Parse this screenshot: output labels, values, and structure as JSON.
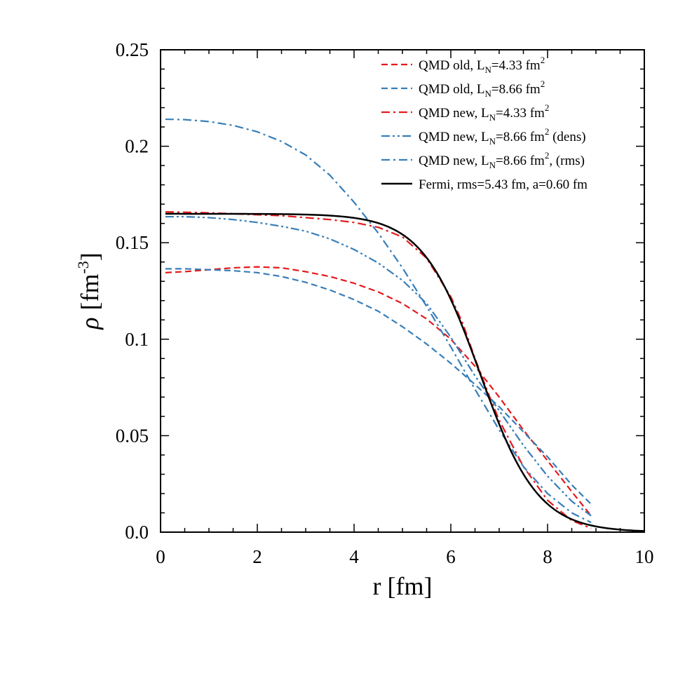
{
  "chart_data": {
    "type": "line",
    "xlabel": "r [fm]",
    "ylabel": "ρ [fm-3]",
    "ylabel_parts": {
      "symbol": "ρ",
      "unit_open": "[fm",
      "unit_exp": "-3",
      "unit_close": "]"
    },
    "xlim": [
      0,
      10
    ],
    "ylim": [
      0,
      0.25
    ],
    "xticks": [
      0,
      2,
      4,
      6,
      8,
      10
    ],
    "xtick_labels": [
      "0",
      "2",
      "4",
      "6",
      "8",
      "10"
    ],
    "yticks": [
      0,
      0.05,
      0.1,
      0.15,
      0.2,
      0.25
    ],
    "ytick_labels": [
      "0.0",
      "0.05",
      "0.1",
      "0.15",
      "0.2",
      "0.25"
    ],
    "grid": false,
    "legend_position": "top-right",
    "series": [
      {
        "name": "QMD old, LN=4.33 fm2",
        "legend": {
          "a": "QMD old, L",
          "sub": "N",
          "b": "=4.33 fm",
          "sup": "2",
          "c": ""
        },
        "color": "#e41a1c",
        "dash": "dash",
        "x": [
          0.1,
          0.5,
          1,
          1.5,
          2,
          2.5,
          3,
          3.5,
          4,
          4.5,
          5,
          5.5,
          6,
          6.5,
          7,
          7.5,
          8,
          8.5,
          8.9
        ],
        "y": [
          0.1345,
          0.135,
          0.136,
          0.137,
          0.1375,
          0.137,
          0.135,
          0.1325,
          0.129,
          0.1245,
          0.1185,
          0.1105,
          0.1,
          0.086,
          0.07,
          0.053,
          0.037,
          0.021,
          0.0085
        ]
      },
      {
        "name": "QMD old, LN=8.66 fm2",
        "legend": {
          "a": "QMD old, L",
          "sub": "N",
          "b": "=8.66 fm",
          "sup": "2",
          "c": ""
        },
        "color": "#377eb8",
        "dash": "dash",
        "x": [
          0.1,
          0.5,
          1,
          1.5,
          2,
          2.5,
          3,
          3.5,
          4,
          4.5,
          5,
          5.5,
          6,
          6.5,
          7,
          7.5,
          8,
          8.5,
          8.9
        ],
        "y": [
          0.1365,
          0.1365,
          0.136,
          0.1355,
          0.1345,
          0.1325,
          0.1295,
          0.1255,
          0.1205,
          0.1145,
          0.1065,
          0.0975,
          0.0875,
          0.0765,
          0.065,
          0.052,
          0.039,
          0.0245,
          0.0145
        ]
      },
      {
        "name": "QMD new, LN=4.33 fm2",
        "legend": {
          "a": "QMD new, L",
          "sub": "N",
          "b": "=4.33 fm",
          "sup": "2",
          "c": ""
        },
        "color": "#e41a1c",
        "dash": "dashdot",
        "x": [
          0.1,
          0.5,
          1,
          1.5,
          2,
          2.5,
          3,
          3.5,
          4,
          4.5,
          5,
          5.5,
          6,
          6.25,
          6.5,
          6.75,
          7,
          7.5,
          8,
          8.5,
          8.9
        ],
        "y": [
          0.166,
          0.1658,
          0.1655,
          0.165,
          0.1645,
          0.164,
          0.163,
          0.162,
          0.1605,
          0.158,
          0.153,
          0.142,
          0.122,
          0.108,
          0.09,
          0.0735,
          0.058,
          0.034,
          0.0165,
          0.006,
          0.002
        ]
      },
      {
        "name": "QMD new, LN=8.66 fm2 (dens)",
        "legend": {
          "a": "QMD new, L",
          "sub": "N",
          "b": "=8.66 fm",
          "sup": "2",
          "c": " (dens)"
        },
        "color": "#377eb8",
        "dash": "dashdotdot",
        "x": [
          0.1,
          0.5,
          1,
          1.5,
          2,
          2.5,
          3,
          3.5,
          4,
          4.5,
          5,
          5.5,
          6,
          6.5,
          7,
          7.5,
          8,
          8.5,
          8.9
        ],
        "y": [
          0.1635,
          0.1635,
          0.163,
          0.162,
          0.1605,
          0.1585,
          0.156,
          0.152,
          0.1465,
          0.1395,
          0.1305,
          0.1185,
          0.101,
          0.081,
          0.063,
          0.045,
          0.029,
          0.016,
          0.0085
        ]
      },
      {
        "name": "QMD new, LN=8.66 fm2, (rms)",
        "legend": {
          "a": "QMD new, L",
          "sub": "N",
          "b": "=8.66 fm",
          "sup": "2",
          "c": ", (rms)"
        },
        "color": "#377eb8",
        "dash": "dashdot",
        "x": [
          0.1,
          0.5,
          1,
          1.5,
          2,
          2.5,
          3,
          3.5,
          4,
          4.5,
          5,
          5.5,
          6,
          6.5,
          7,
          7.5,
          8,
          8.5,
          8.9
        ],
        "y": [
          0.214,
          0.2138,
          0.2128,
          0.2108,
          0.2075,
          0.2025,
          0.1955,
          0.185,
          0.171,
          0.155,
          0.137,
          0.117,
          0.096,
          0.074,
          0.053,
          0.034,
          0.02,
          0.01,
          0.005
        ]
      },
      {
        "name": "Fermi, rms=5.43 fm, a=0.60 fm",
        "legend": {
          "a": "Fermi, rms=5.43 fm, a=0.60 fm",
          "sub": "",
          "b": "",
          "sup": "",
          "c": ""
        },
        "color": "#000000",
        "dash": "solid",
        "fermi": {
          "rho0": 0.165,
          "R": 6.6,
          "a": 0.6,
          "xmin": 0.1,
          "xmax": 10,
          "step": 0.05
        }
      }
    ]
  }
}
